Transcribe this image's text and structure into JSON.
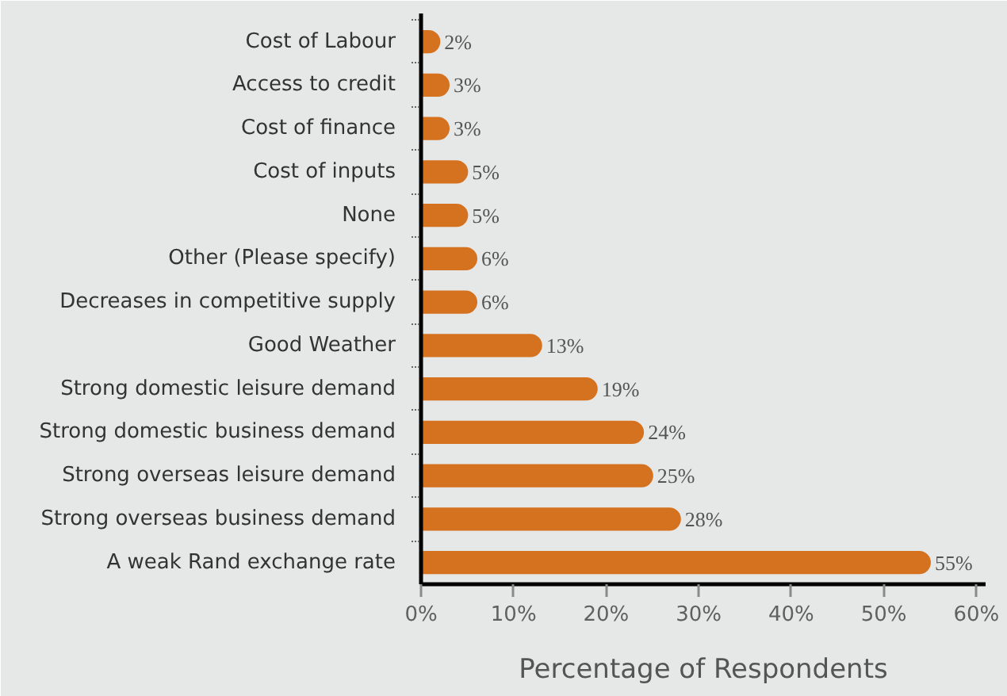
{
  "chart_data": {
    "type": "bar",
    "orientation": "horizontal",
    "xlabel": "Percentage of Respondents",
    "categories": [
      "Cost of Labour",
      "Access to credit",
      "Cost of finance",
      "Cost of inputs",
      "None",
      "Other (Please specify)",
      "Decreases in competitive supply",
      "Good Weather",
      "Strong domestic leisure demand",
      "Strong domestic business demand",
      "Strong overseas leisure demand",
      "Strong overseas business demand",
      "A weak Rand exchange rate"
    ],
    "values": [
      2,
      3,
      3,
      5,
      5,
      6,
      6,
      13,
      19,
      24,
      25,
      28,
      55
    ],
    "value_labels": [
      "2%",
      "3%",
      "3%",
      "5%",
      "5%",
      "6%",
      "6%",
      "13%",
      "19%",
      "24%",
      "25%",
      "28%",
      "55%"
    ],
    "color": "#d5721f",
    "xlim": [
      0,
      61
    ],
    "xticks": [
      {
        "value": 0,
        "label": "0%"
      },
      {
        "value": 10,
        "label": "10%"
      },
      {
        "value": 20,
        "label": "20%"
      },
      {
        "value": 30,
        "label": "30%"
      },
      {
        "value": 40,
        "label": "40%"
      },
      {
        "value": 50,
        "label": "50%"
      },
      {
        "value": 60,
        "label": "60%"
      }
    ]
  }
}
